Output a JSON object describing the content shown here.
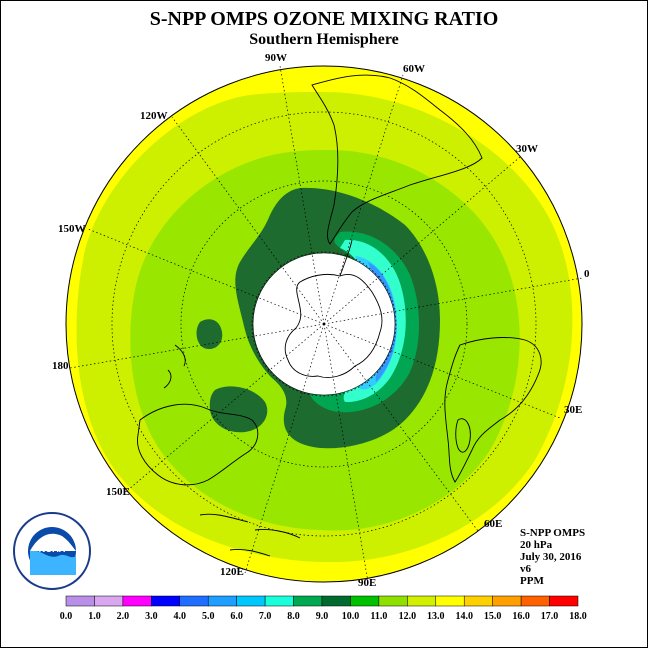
{
  "title": "S-NPP OMPS OZONE MIXING RATIO",
  "subtitle": "Southern Hemisphere",
  "longitude_labels": [
    "90W",
    "60W",
    "120W",
    "30W",
    "150W",
    "0",
    "180",
    "30E",
    "150E",
    "60E",
    "120E",
    "90E"
  ],
  "info": {
    "line1": "S-NPP OMPS",
    "line2": "20 hPa",
    "line3": "July 30, 2016",
    "line4": "v6",
    "line5": "PPM"
  },
  "logo_text": "NOAA",
  "colorbar": {
    "labels": [
      "0.0",
      "1.0",
      "2.0",
      "3.0",
      "4.0",
      "5.0",
      "6.0",
      "7.0",
      "8.0",
      "9.0",
      "10.0",
      "11.0",
      "12.0",
      "13.0",
      "14.0",
      "15.0",
      "16.0",
      "17.0",
      "18.0"
    ],
    "colors": [
      "#b98fe8",
      "#d9a6f0",
      "#ff00ff",
      "#0000ff",
      "#1e6fff",
      "#1e9eff",
      "#00c8ff",
      "#1affd9",
      "#00a850",
      "#006a2f",
      "#00c000",
      "#8fe000",
      "#d0f000",
      "#ffff00",
      "#ffd000",
      "#ffa000",
      "#ff6000",
      "#ff0000",
      "#8b5a3c"
    ]
  },
  "map_colors": {
    "ppm_13": "#ffff00",
    "ppm_12": "#ccf000",
    "ppm_11": "#99e600",
    "ppm_10": "#1e6b2f",
    "ppm_9": "#00a651",
    "ppm_8": "#33ffcc",
    "ppm_7": "#33ccff",
    "ppm_6": "#3399ff"
  }
}
